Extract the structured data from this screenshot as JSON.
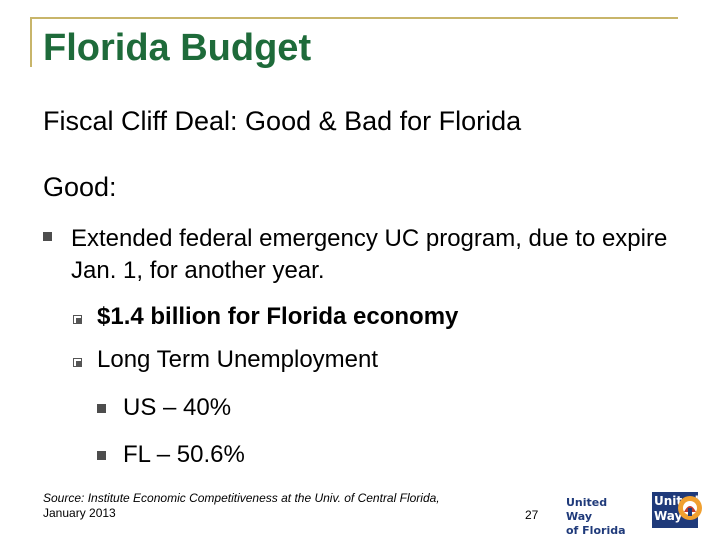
{
  "slide": {
    "title": "Florida Budget",
    "subtitle": "Fiscal Cliff Deal: Good & Bad for Florida",
    "section_heading": "Good:",
    "point": "Extended federal emergency UC program, due to expire Jan. 1, for another year.",
    "subpoints": [
      "$1.4 billion for Florida economy",
      "Long Term Unemployment"
    ],
    "stats": [
      "US – 40%",
      "FL – 50.6%"
    ],
    "source_line1": "Source:  Institute Economic Competitiveness at the Univ. of Central Florida,",
    "source_line2": "January 2013",
    "slide_number": "27"
  },
  "logo": {
    "line1": "United Way",
    "line2": "of Florida",
    "badge_line1": "United",
    "badge_line2": "Way"
  },
  "colors": {
    "title": "#1e6b3a",
    "frame": "#c8b56a",
    "brand_blue": "#1f3a7a",
    "emblem_orange": "#f0a030"
  }
}
